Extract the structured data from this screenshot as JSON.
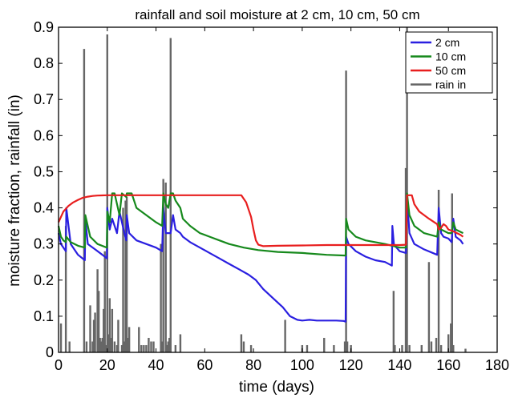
{
  "chart_data": {
    "type": "line",
    "title": "rainfall and soil moisture at 2 cm, 10 cm, 50 cm",
    "xlabel": "time (days)",
    "ylabel": "moisture fraction, rainfall (in)",
    "xlim": [
      0,
      180
    ],
    "ylim": [
      0,
      0.9
    ],
    "xticks": [
      0,
      20,
      40,
      60,
      80,
      100,
      120,
      140,
      160,
      180
    ],
    "yticks": [
      0,
      0.1,
      0.2,
      0.3,
      0.4,
      0.5,
      0.6,
      0.7,
      0.8,
      0.9
    ],
    "xtick_labels": [
      "0",
      "20",
      "40",
      "60",
      "80",
      "100",
      "120",
      "140",
      "160",
      "180"
    ],
    "ytick_labels": [
      "0",
      "0.1",
      "0.2",
      "0.3",
      "0.4",
      "0.5",
      "0.6",
      "0.7",
      "0.8",
      "0.9"
    ],
    "grid": false,
    "legend_position": "top-right",
    "series": [
      {
        "name": "2 cm",
        "color": "#2a1fe0",
        "kind": "line",
        "x": [
          0,
          1,
          2,
          3,
          3.2,
          5,
          8,
          10.8,
          11,
          12,
          15,
          18,
          19.8,
          20,
          21,
          22,
          24,
          25,
          27,
          27.8,
          28,
          29,
          32,
          36,
          40,
          42.5,
          43,
          44,
          46,
          47,
          48,
          50,
          51,
          54,
          58,
          62,
          66,
          70,
          74,
          78,
          81,
          84,
          88,
          92,
          95,
          98,
          100,
          103,
          106,
          110,
          114,
          117,
          117.8,
          118,
          119,
          122,
          126,
          130,
          134,
          136.8,
          137,
          137.6,
          138,
          140,
          142.6,
          143,
          144,
          146,
          150,
          155.4,
          156,
          157,
          158,
          160,
          161.3,
          162,
          163,
          165,
          166
        ],
        "y": [
          0.33,
          0.3,
          0.29,
          0.28,
          0.4,
          0.3,
          0.27,
          0.255,
          0.37,
          0.3,
          0.285,
          0.27,
          0.26,
          0.4,
          0.34,
          0.37,
          0.33,
          0.39,
          0.33,
          0.31,
          0.38,
          0.33,
          0.31,
          0.3,
          0.29,
          0.28,
          0.4,
          0.33,
          0.33,
          0.38,
          0.34,
          0.33,
          0.32,
          0.305,
          0.29,
          0.275,
          0.26,
          0.245,
          0.23,
          0.215,
          0.2,
          0.175,
          0.15,
          0.125,
          0.1,
          0.09,
          0.088,
          0.09,
          0.088,
          0.088,
          0.088,
          0.087,
          0.085,
          0.32,
          0.3,
          0.28,
          0.265,
          0.255,
          0.25,
          0.24,
          0.35,
          0.3,
          0.295,
          0.28,
          0.275,
          0.43,
          0.33,
          0.3,
          0.285,
          0.27,
          0.4,
          0.33,
          0.32,
          0.315,
          0.305,
          0.37,
          0.32,
          0.31,
          0.3
        ]
      },
      {
        "name": "10 cm",
        "color": "#16891c",
        "kind": "line",
        "x": [
          0,
          1,
          2,
          3,
          3.2,
          5,
          8,
          10.8,
          11,
          13,
          16,
          19.8,
          20,
          21,
          22,
          23,
          25,
          26,
          27.8,
          28,
          30,
          32,
          36,
          40,
          42.5,
          43,
          44,
          45,
          46,
          47,
          48,
          50,
          51,
          54,
          58,
          62,
          66,
          70,
          76,
          82,
          90,
          100,
          110,
          117.8,
          118,
          119,
          122,
          126,
          130,
          134,
          137,
          140,
          142.6,
          143,
          144,
          146,
          150,
          155.4,
          156,
          157,
          160,
          161.3,
          162,
          163,
          166
        ],
        "y": [
          0.35,
          0.32,
          0.31,
          0.305,
          0.32,
          0.305,
          0.295,
          0.29,
          0.38,
          0.32,
          0.3,
          0.29,
          0.39,
          0.36,
          0.44,
          0.44,
          0.38,
          0.44,
          0.43,
          0.44,
          0.44,
          0.4,
          0.38,
          0.36,
          0.35,
          0.44,
          0.41,
          0.4,
          0.44,
          0.44,
          0.42,
          0.4,
          0.37,
          0.35,
          0.33,
          0.32,
          0.31,
          0.3,
          0.29,
          0.283,
          0.278,
          0.275,
          0.27,
          0.268,
          0.37,
          0.34,
          0.32,
          0.31,
          0.305,
          0.3,
          0.295,
          0.29,
          0.29,
          0.44,
          0.38,
          0.35,
          0.33,
          0.32,
          0.36,
          0.34,
          0.33,
          0.33,
          0.36,
          0.34,
          0.33
        ]
      },
      {
        "name": "50 cm",
        "color": "#e81e1e",
        "kind": "line",
        "x": [
          0,
          2,
          4,
          6,
          8,
          10,
          12,
          14,
          16,
          20,
          30,
          40,
          50,
          60,
          70,
          75,
          77,
          79,
          80,
          81,
          82,
          84,
          90,
          100,
          110,
          118,
          125,
          135,
          140,
          142.6,
          143,
          145,
          146,
          148,
          152,
          155.4,
          156,
          157,
          158,
          159,
          160,
          162,
          165,
          166
        ],
        "y": [
          0.36,
          0.39,
          0.405,
          0.415,
          0.422,
          0.428,
          0.431,
          0.433,
          0.434,
          0.435,
          0.435,
          0.435,
          0.435,
          0.435,
          0.435,
          0.435,
          0.415,
          0.375,
          0.34,
          0.31,
          0.298,
          0.294,
          0.295,
          0.296,
          0.297,
          0.297,
          0.297,
          0.297,
          0.297,
          0.298,
          0.435,
          0.435,
          0.41,
          0.39,
          0.37,
          0.355,
          0.34,
          0.345,
          0.355,
          0.35,
          0.34,
          0.335,
          0.325,
          0.32
        ]
      },
      {
        "name": "rain in",
        "color": "#666666",
        "kind": "bar",
        "x": [
          1,
          3,
          4.5,
          10.5,
          11.5,
          13,
          14,
          14.5,
          15,
          16,
          16.5,
          17,
          17.5,
          18,
          18.5,
          19,
          19.5,
          20,
          20.5,
          21,
          21.5,
          22,
          23,
          24,
          24.5,
          26,
          26.5,
          27,
          27.5,
          28,
          28.5,
          29,
          33,
          34,
          35,
          36,
          37,
          38,
          39,
          42,
          42.5,
          43,
          44,
          44.5,
          45,
          45.5,
          46,
          48,
          50,
          75,
          76,
          79,
          93,
          100,
          102,
          109,
          113,
          117.5,
          118,
          118.5,
          120,
          137.5,
          138,
          141,
          142.5,
          143,
          144,
          149,
          152,
          153,
          155,
          156,
          157,
          160,
          161,
          161.5,
          162,
          167
        ],
        "values": [
          0.08,
          0.35,
          0.03,
          0.84,
          0.03,
          0.13,
          0.03,
          0.09,
          0.11,
          0.23,
          0.17,
          0.04,
          0.03,
          0.04,
          0.12,
          0.28,
          0.02,
          0.88,
          0.05,
          0.15,
          0.04,
          0.12,
          0.03,
          0.02,
          0.09,
          0.02,
          0.4,
          0.03,
          0.42,
          0.43,
          0.04,
          0.07,
          0.07,
          0.02,
          0.02,
          0.02,
          0.04,
          0.03,
          0.03,
          0.3,
          0.03,
          0.48,
          0.47,
          0.02,
          0.03,
          0.04,
          0.87,
          0.02,
          0.05,
          0.05,
          0.03,
          0.02,
          0.09,
          0.02,
          0.02,
          0.04,
          0.02,
          0.03,
          0.78,
          0.03,
          0.02,
          0.17,
          0.02,
          0.02,
          0.51,
          0.9,
          0.02,
          0.02,
          0.25,
          0.03,
          0.04,
          0.45,
          0.02,
          0.05,
          0.08,
          0.44,
          0.02,
          0.01
        ]
      }
    ]
  }
}
